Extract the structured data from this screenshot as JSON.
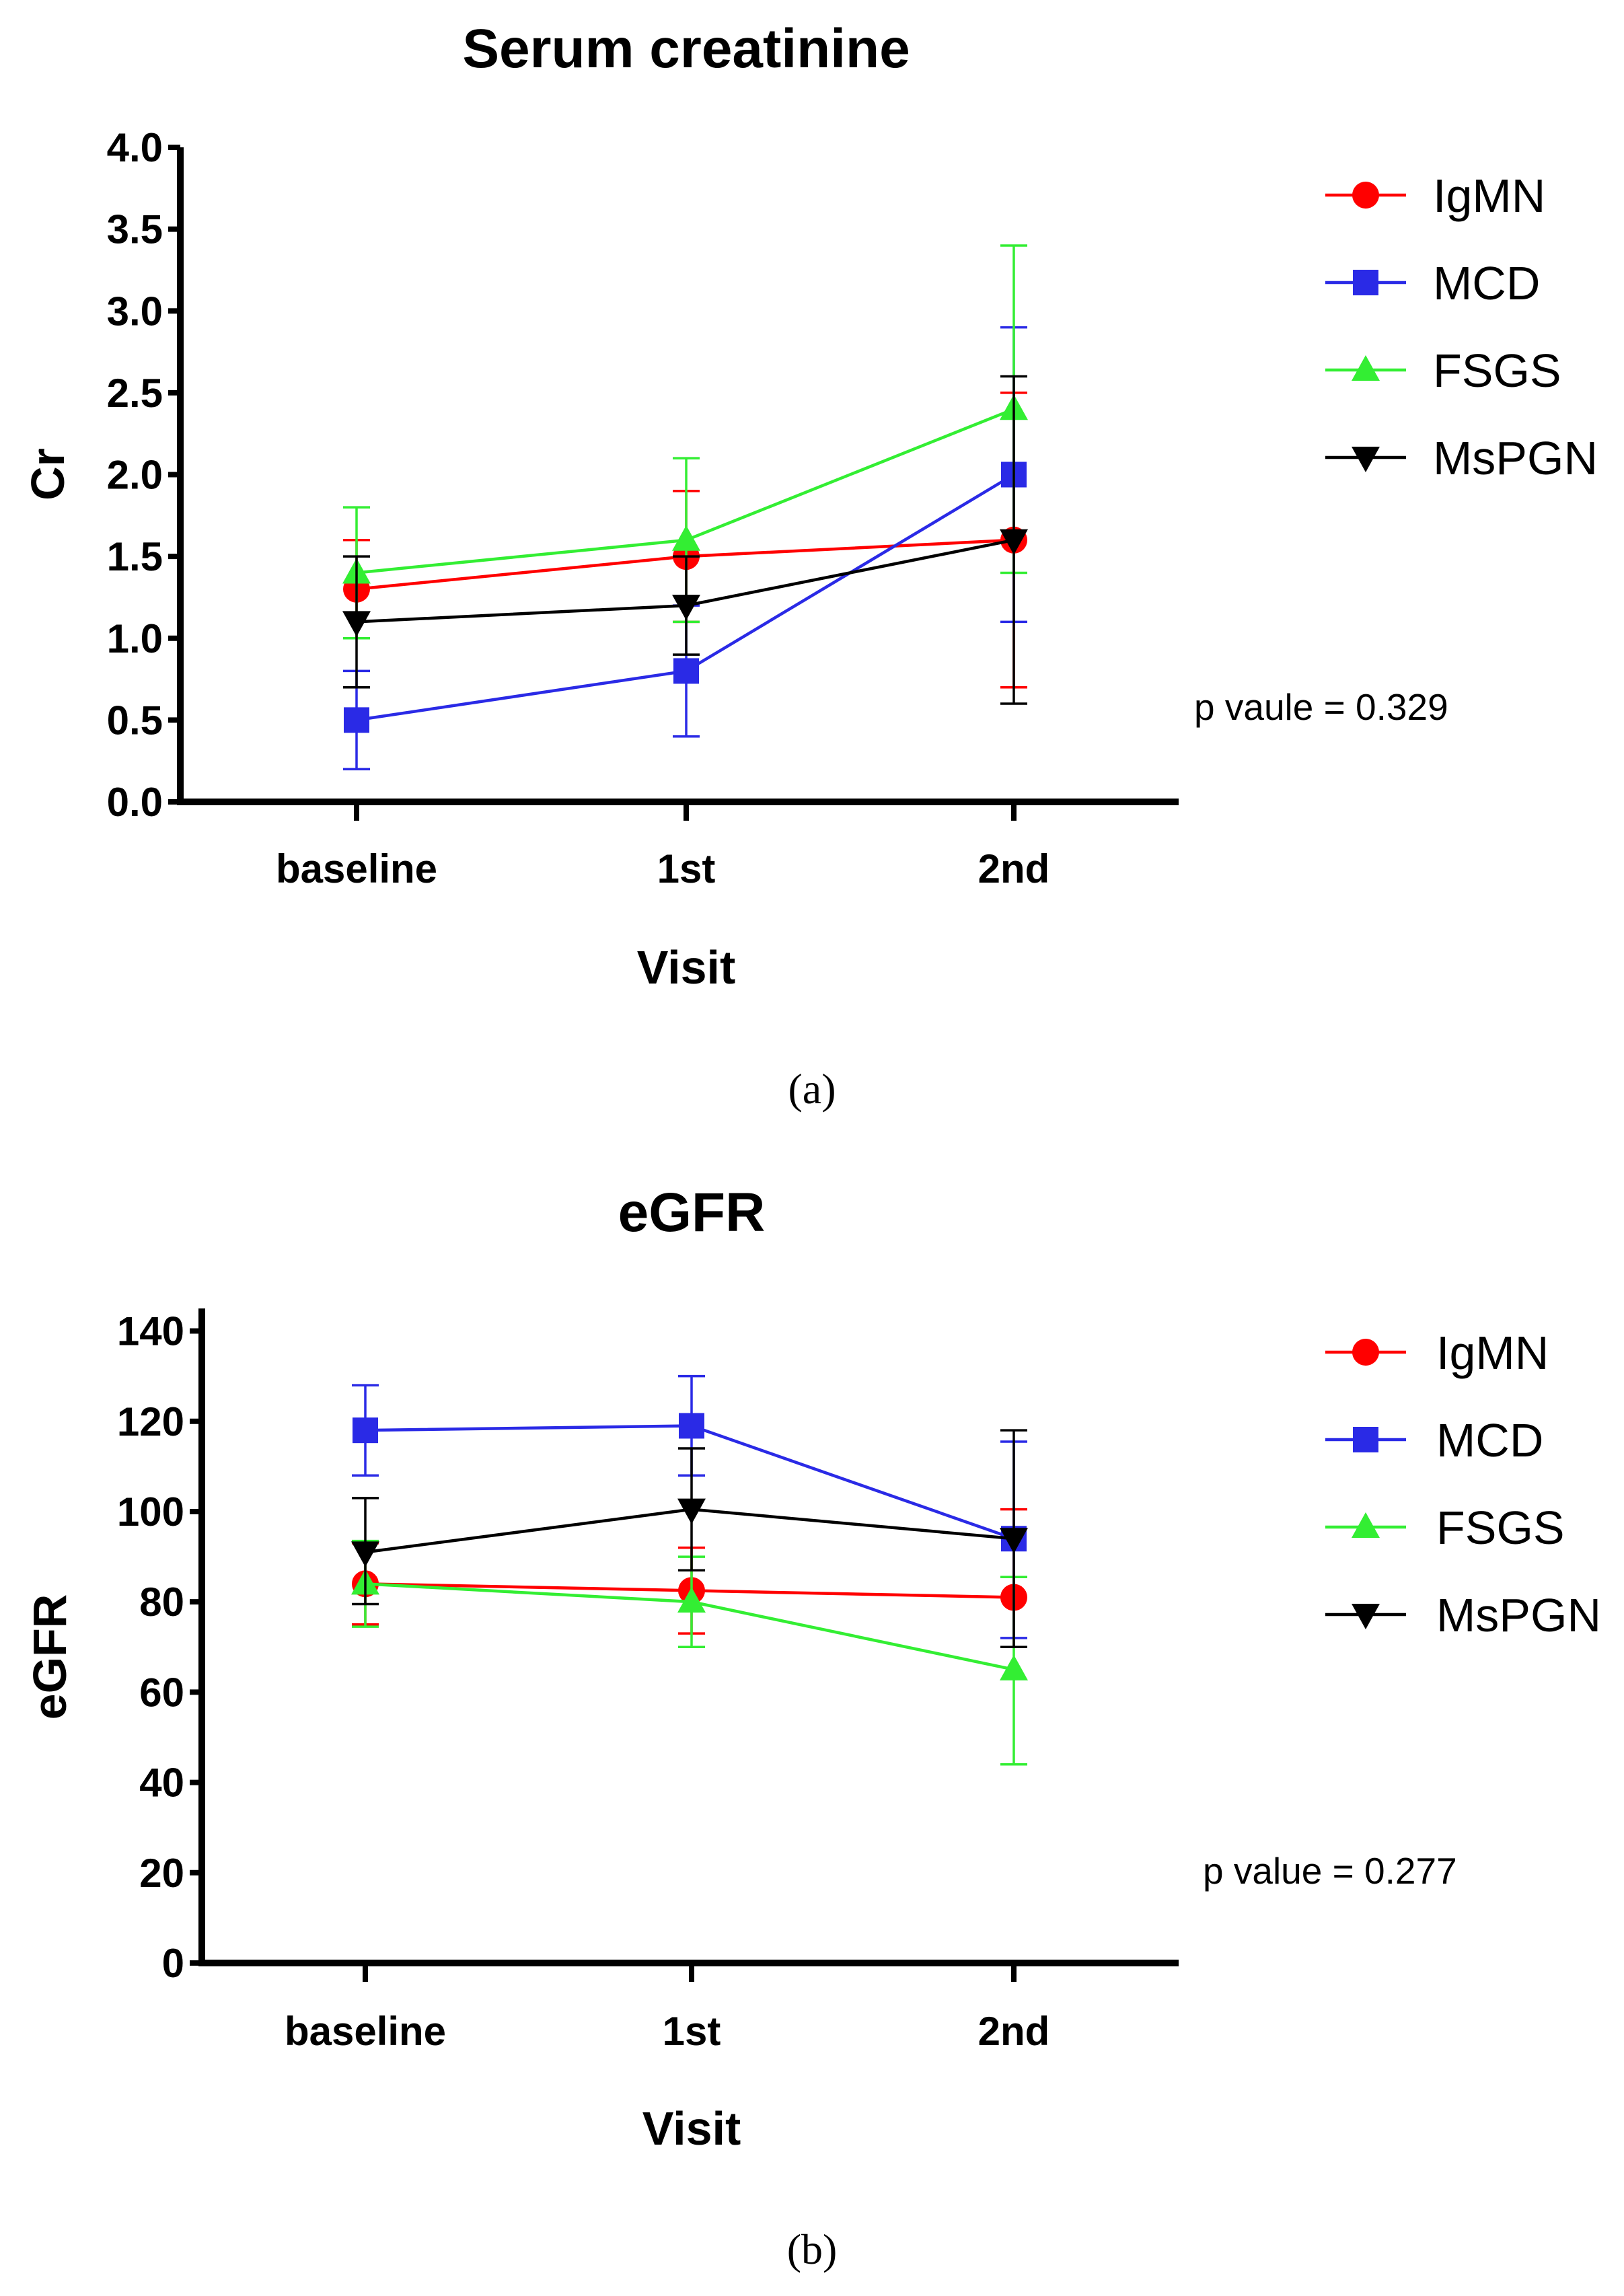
{
  "figure": {
    "panels": [
      "(a)",
      "(b)"
    ],
    "colors": {
      "IgMN": "#ff0000",
      "MCD": "#2a2ae6",
      "FSGS": "#33ee33",
      "MsPGN": "#000000"
    }
  },
  "chart_data": [
    {
      "type": "line",
      "title": "Serum creatinine",
      "xlabel": "Visit",
      "ylabel": "Cr",
      "categories": [
        "baseline",
        "1st",
        "2nd"
      ],
      "ylim": [
        0,
        4.0
      ],
      "yticks": [
        "0.0",
        "0.5",
        "1.0",
        "1.5",
        "2.0",
        "2.5",
        "3.0",
        "3.5",
        "4.0"
      ],
      "annotation": "p vaule = 0.329",
      "panel_label": "(a)",
      "series": [
        {
          "name": "IgMN",
          "marker": "circle",
          "values": [
            1.3,
            1.5,
            1.6
          ],
          "error": [
            [
              1.0,
              1.6
            ],
            [
              1.1,
              1.9
            ],
            [
              0.7,
              2.5
            ]
          ]
        },
        {
          "name": "MCD",
          "marker": "square",
          "values": [
            0.5,
            0.8,
            2.0
          ],
          "error": [
            [
              0.2,
              0.8
            ],
            [
              0.4,
              1.2
            ],
            [
              1.1,
              2.9
            ]
          ]
        },
        {
          "name": "FSGS",
          "marker": "triangle-up",
          "values": [
            1.4,
            1.6,
            2.4
          ],
          "error": [
            [
              1.0,
              1.8
            ],
            [
              1.1,
              2.1
            ],
            [
              1.4,
              3.4
            ]
          ]
        },
        {
          "name": "MsPGN",
          "marker": "triangle-down",
          "values": [
            1.1,
            1.2,
            1.6
          ],
          "error": [
            [
              0.7,
              1.5
            ],
            [
              0.9,
              1.5
            ],
            [
              0.6,
              2.6
            ]
          ]
        }
      ]
    },
    {
      "type": "line",
      "title": "eGFR",
      "xlabel": "Visit",
      "ylabel": "eGFR",
      "categories": [
        "baseline",
        "1st",
        "2nd"
      ],
      "ylim": [
        0,
        145
      ],
      "yticks": [
        "0",
        "20",
        "40",
        "60",
        "80",
        "100",
        "120",
        "140"
      ],
      "annotation": "p value = 0.277",
      "panel_label": "(b)",
      "series": [
        {
          "name": "IgMN",
          "marker": "circle",
          "values": [
            84,
            82.5,
            81
          ],
          "error": [
            [
              75,
              93
            ],
            [
              73,
              92
            ],
            [
              70,
              100.5
            ]
          ]
        },
        {
          "name": "MCD",
          "marker": "square",
          "values": [
            118,
            119,
            94
          ],
          "error": [
            [
              108,
              128
            ],
            [
              108,
              130
            ],
            [
              72,
              115.5
            ]
          ]
        },
        {
          "name": "FSGS",
          "marker": "triangle-up",
          "values": [
            84,
            80,
            65
          ],
          "error": [
            [
              74.5,
              93.5
            ],
            [
              70,
              90
            ],
            [
              44,
              85.5
            ]
          ]
        },
        {
          "name": "MsPGN",
          "marker": "triangle-down",
          "values": [
            91,
            100.5,
            94
          ],
          "error": [
            [
              79.5,
              103
            ],
            [
              87,
              114
            ],
            [
              70,
              118
            ]
          ]
        }
      ]
    }
  ]
}
